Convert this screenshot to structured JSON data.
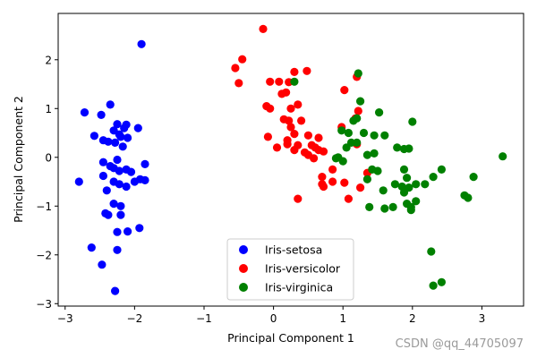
{
  "chart_data": {
    "type": "scatter",
    "title": "",
    "xlabel": "Principal Component 1",
    "ylabel": "Principal Component 2",
    "xlim": [
      -3.1,
      3.6
    ],
    "ylim": [
      -3.05,
      2.95
    ],
    "xticks": [
      -3,
      -2,
      -1,
      0,
      1,
      2,
      3
    ],
    "yticks": [
      -3,
      -2,
      -1,
      0,
      1,
      2
    ],
    "xtick_labels": [
      "−3",
      "−2",
      "−1",
      "0",
      "1",
      "2",
      "3"
    ],
    "ytick_labels": [
      "−3",
      "−2",
      "−1",
      "0",
      "1",
      "2"
    ],
    "grid": false,
    "legend_position": "lower-center",
    "series": [
      {
        "name": "Iris-setosa",
        "color": "#0000ff",
        "points": [
          [
            -1.9,
            2.32
          ],
          [
            -2.72,
            0.92
          ],
          [
            -2.58,
            0.44
          ],
          [
            -2.45,
            0.35
          ],
          [
            -2.38,
            0.32
          ],
          [
            -2.3,
            0.55
          ],
          [
            -2.25,
            0.68
          ],
          [
            -2.15,
            0.6
          ],
          [
            -2.12,
            0.67
          ],
          [
            -2.22,
            0.47
          ],
          [
            -2.2,
            0.42
          ],
          [
            -2.1,
            0.4
          ],
          [
            -1.95,
            0.6
          ],
          [
            -2.35,
            1.08
          ],
          [
            -2.48,
            0.87
          ],
          [
            -2.28,
            0.3
          ],
          [
            -2.17,
            0.22
          ],
          [
            -2.45,
            -0.1
          ],
          [
            -2.35,
            -0.18
          ],
          [
            -2.25,
            -0.05
          ],
          [
            -2.3,
            -0.22
          ],
          [
            -2.22,
            -0.28
          ],
          [
            -2.12,
            -0.25
          ],
          [
            -2.05,
            -0.3
          ],
          [
            -1.85,
            -0.14
          ],
          [
            -2.8,
            -0.5
          ],
          [
            -2.45,
            -0.38
          ],
          [
            -2.3,
            -0.5
          ],
          [
            -2.22,
            -0.55
          ],
          [
            -2.12,
            -0.6
          ],
          [
            -2.0,
            -0.5
          ],
          [
            -1.92,
            -0.45
          ],
          [
            -1.85,
            -0.47
          ],
          [
            -2.4,
            -0.68
          ],
          [
            -2.3,
            -0.95
          ],
          [
            -2.2,
            -1.0
          ],
          [
            -2.42,
            -1.15
          ],
          [
            -2.38,
            -1.18
          ],
          [
            -2.2,
            -1.18
          ],
          [
            -2.25,
            -1.53
          ],
          [
            -2.1,
            -1.52
          ],
          [
            -1.93,
            -1.45
          ],
          [
            -2.62,
            -1.85
          ],
          [
            -2.25,
            -1.9
          ],
          [
            -2.47,
            -2.2
          ],
          [
            -2.28,
            -2.74
          ]
        ]
      },
      {
        "name": "Iris-versicolor",
        "color": "#ff0000",
        "points": [
          [
            -0.15,
            2.63
          ],
          [
            -0.45,
            2.01
          ],
          [
            -0.55,
            1.83
          ],
          [
            -0.5,
            1.52
          ],
          [
            0.3,
            1.75
          ],
          [
            0.48,
            1.77
          ],
          [
            -0.05,
            1.55
          ],
          [
            0.08,
            1.55
          ],
          [
            0.22,
            1.54
          ],
          [
            0.18,
            1.33
          ],
          [
            0.12,
            1.3
          ],
          [
            -0.1,
            1.05
          ],
          [
            -0.05,
            1.0
          ],
          [
            0.25,
            1.0
          ],
          [
            0.35,
            1.08
          ],
          [
            0.15,
            0.78
          ],
          [
            0.22,
            0.75
          ],
          [
            0.4,
            0.75
          ],
          [
            0.25,
            0.62
          ],
          [
            0.3,
            0.48
          ],
          [
            0.5,
            0.45
          ],
          [
            -0.08,
            0.42
          ],
          [
            0.2,
            0.35
          ],
          [
            0.2,
            0.27
          ],
          [
            0.35,
            0.25
          ],
          [
            0.55,
            0.25
          ],
          [
            0.05,
            0.2
          ],
          [
            0.3,
            0.15
          ],
          [
            0.45,
            0.1
          ],
          [
            0.6,
            0.2
          ],
          [
            0.65,
            0.15
          ],
          [
            0.5,
            0.05
          ],
          [
            0.58,
            -0.02
          ],
          [
            0.72,
            0.12
          ],
          [
            0.65,
            0.4
          ],
          [
            0.98,
            0.62
          ],
          [
            1.02,
            1.38
          ],
          [
            1.2,
            1.65
          ],
          [
            1.22,
            0.95
          ],
          [
            1.18,
            0.8
          ],
          [
            1.2,
            0.27
          ],
          [
            0.85,
            -0.25
          ],
          [
            0.7,
            -0.4
          ],
          [
            0.7,
            -0.55
          ],
          [
            0.85,
            -0.5
          ],
          [
            1.02,
            -0.52
          ],
          [
            0.72,
            -0.6
          ],
          [
            1.08,
            -0.85
          ],
          [
            1.25,
            -0.62
          ],
          [
            1.35,
            -0.32
          ],
          [
            0.35,
            -0.85
          ]
        ]
      },
      {
        "name": "Iris-virginica",
        "color": "#008000",
        "points": [
          [
            0.3,
            1.55
          ],
          [
            1.22,
            1.72
          ],
          [
            1.25,
            1.15
          ],
          [
            1.2,
            0.8
          ],
          [
            1.15,
            0.75
          ],
          [
            0.98,
            0.55
          ],
          [
            1.08,
            0.5
          ],
          [
            1.12,
            0.3
          ],
          [
            1.3,
            0.5
          ],
          [
            1.45,
            0.45
          ],
          [
            1.6,
            0.45
          ],
          [
            1.52,
            0.92
          ],
          [
            2.0,
            0.73
          ],
          [
            1.05,
            0.2
          ],
          [
            1.2,
            0.3
          ],
          [
            0.93,
            0.0
          ],
          [
            0.9,
            -0.02
          ],
          [
            1.0,
            -0.08
          ],
          [
            1.35,
            0.05
          ],
          [
            1.45,
            0.08
          ],
          [
            1.78,
            0.2
          ],
          [
            1.88,
            0.17
          ],
          [
            1.95,
            0.18
          ],
          [
            1.42,
            -0.25
          ],
          [
            1.5,
            -0.28
          ],
          [
            1.35,
            -0.45
          ],
          [
            1.58,
            -0.68
          ],
          [
            1.75,
            -0.55
          ],
          [
            1.88,
            -0.25
          ],
          [
            1.92,
            -0.42
          ],
          [
            1.85,
            -0.6
          ],
          [
            1.88,
            -0.72
          ],
          [
            1.95,
            -0.62
          ],
          [
            2.05,
            -0.55
          ],
          [
            2.18,
            -0.55
          ],
          [
            2.3,
            -0.4
          ],
          [
            2.42,
            -0.25
          ],
          [
            2.88,
            -0.4
          ],
          [
            3.3,
            0.02
          ],
          [
            1.38,
            -1.02
          ],
          [
            1.6,
            -1.05
          ],
          [
            1.72,
            -1.02
          ],
          [
            1.92,
            -0.95
          ],
          [
            1.98,
            -1.02
          ],
          [
            2.05,
            -0.9
          ],
          [
            1.98,
            -1.08
          ],
          [
            2.75,
            -0.78
          ],
          [
            2.8,
            -0.83
          ],
          [
            2.27,
            -1.93
          ],
          [
            2.3,
            -2.63
          ],
          [
            2.42,
            -2.56
          ]
        ]
      }
    ]
  },
  "watermark": "CSDN @qq_44705097"
}
